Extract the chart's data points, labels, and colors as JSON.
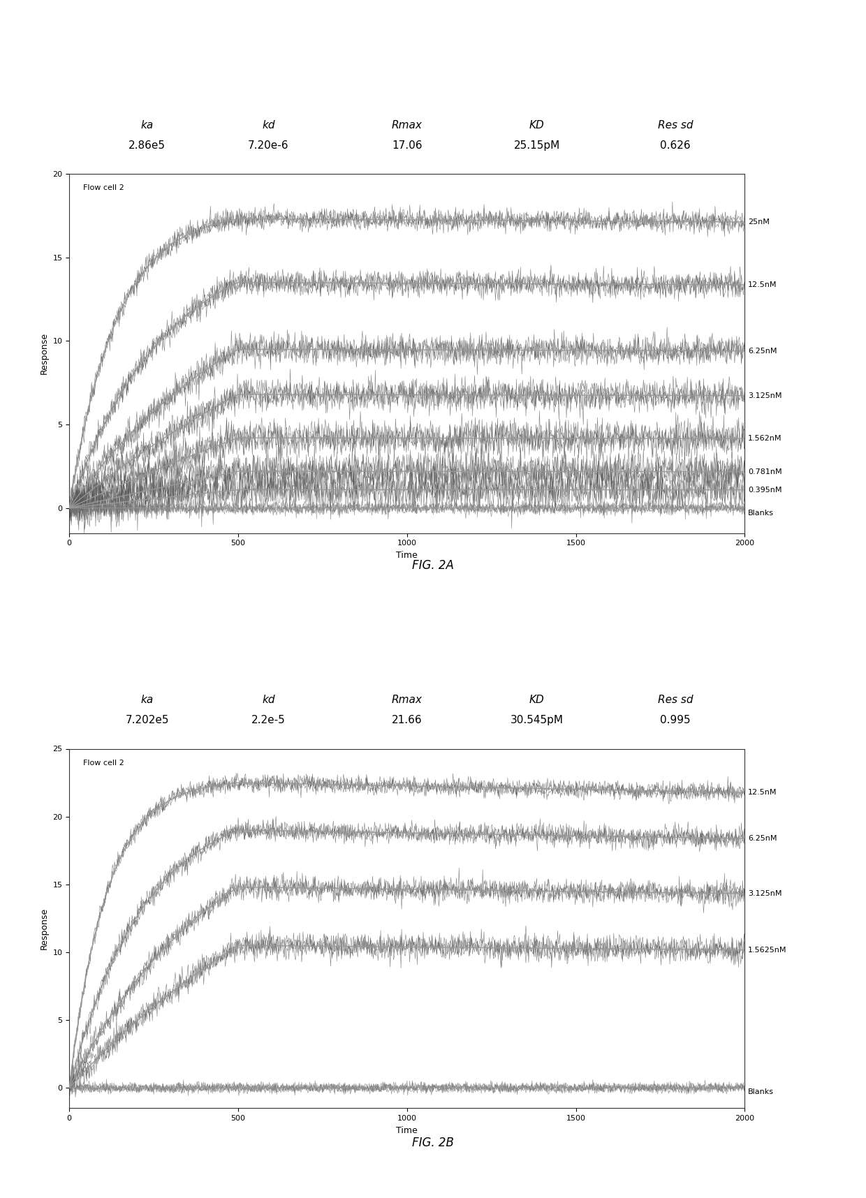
{
  "fig2a": {
    "title_params": [
      "ka",
      "kd",
      "Rmax",
      "KD",
      "Res sd"
    ],
    "title_values": [
      "2.86e5",
      "7.20e-6",
      "17.06",
      "25.15pM",
      "0.626"
    ],
    "flow_cell_label": "Flow cell 2",
    "xlabel": "Time",
    "ylabel": "Response",
    "xlim": [
      0,
      2000
    ],
    "ylim": [
      -1.5,
      20
    ],
    "yticks": [
      0,
      5,
      10,
      15,
      20
    ],
    "xticks": [
      0,
      500,
      1000,
      1500,
      2000
    ],
    "concentrations": [
      25,
      12.5,
      6.25,
      3.125,
      1.562,
      0.781,
      0.395,
      0
    ],
    "target_plateaus": [
      17.3,
      13.5,
      9.5,
      6.8,
      4.2,
      2.2,
      1.1,
      0.0
    ],
    "labels": [
      "25nM",
      "12.5nM",
      "6.25nM",
      "3.125nM",
      "1.562nM",
      "0.781nM",
      "0.395nM",
      "Blanks"
    ],
    "n_reps": [
      3,
      3,
      3,
      3,
      3,
      3,
      3,
      4
    ],
    "fig_label": "FIG. 2A",
    "ka_val": 286000,
    "kd_val": 7.2e-06,
    "t_assoc": 500
  },
  "fig2b": {
    "title_params": [
      "ka",
      "kd",
      "Rmax",
      "KD",
      "Res sd"
    ],
    "title_values": [
      "7.202e5",
      "2.2e-5",
      "21.66",
      "30.545pM",
      "0.995"
    ],
    "flow_cell_label": "Flow cell 2",
    "xlabel": "Time",
    "ylabel": "Response",
    "xlim": [
      0,
      2000
    ],
    "ylim": [
      -1.5,
      25
    ],
    "yticks": [
      0,
      5,
      10,
      15,
      20,
      25
    ],
    "xticks": [
      0,
      500,
      1000,
      1500,
      2000
    ],
    "concentrations": [
      12.5,
      6.25,
      3.125,
      1.5625,
      0
    ],
    "target_plateaus": [
      22.5,
      19.0,
      14.8,
      10.5,
      0.0
    ],
    "labels": [
      "12.5nM",
      "6.25nM",
      "3.125nM",
      "1.5625nM",
      "Blanks"
    ],
    "n_reps": [
      3,
      3,
      3,
      3,
      5
    ],
    "fig_label": "FIG. 2B",
    "ka_val": 720200,
    "kd_val": 2.2e-05,
    "t_assoc": 500
  },
  "background_color": "#ffffff",
  "axes_bg_color": "#ffffff",
  "trace_color": "#555555",
  "fit_line_color": "#999999",
  "blank_color": "#777777",
  "param_label_fontsize": 11,
  "param_value_fontsize": 11,
  "axis_label_fontsize": 9,
  "tick_fontsize": 8,
  "annotation_fontsize": 8,
  "flow_cell_fontsize": 8,
  "fig_label_fontsize": 12
}
